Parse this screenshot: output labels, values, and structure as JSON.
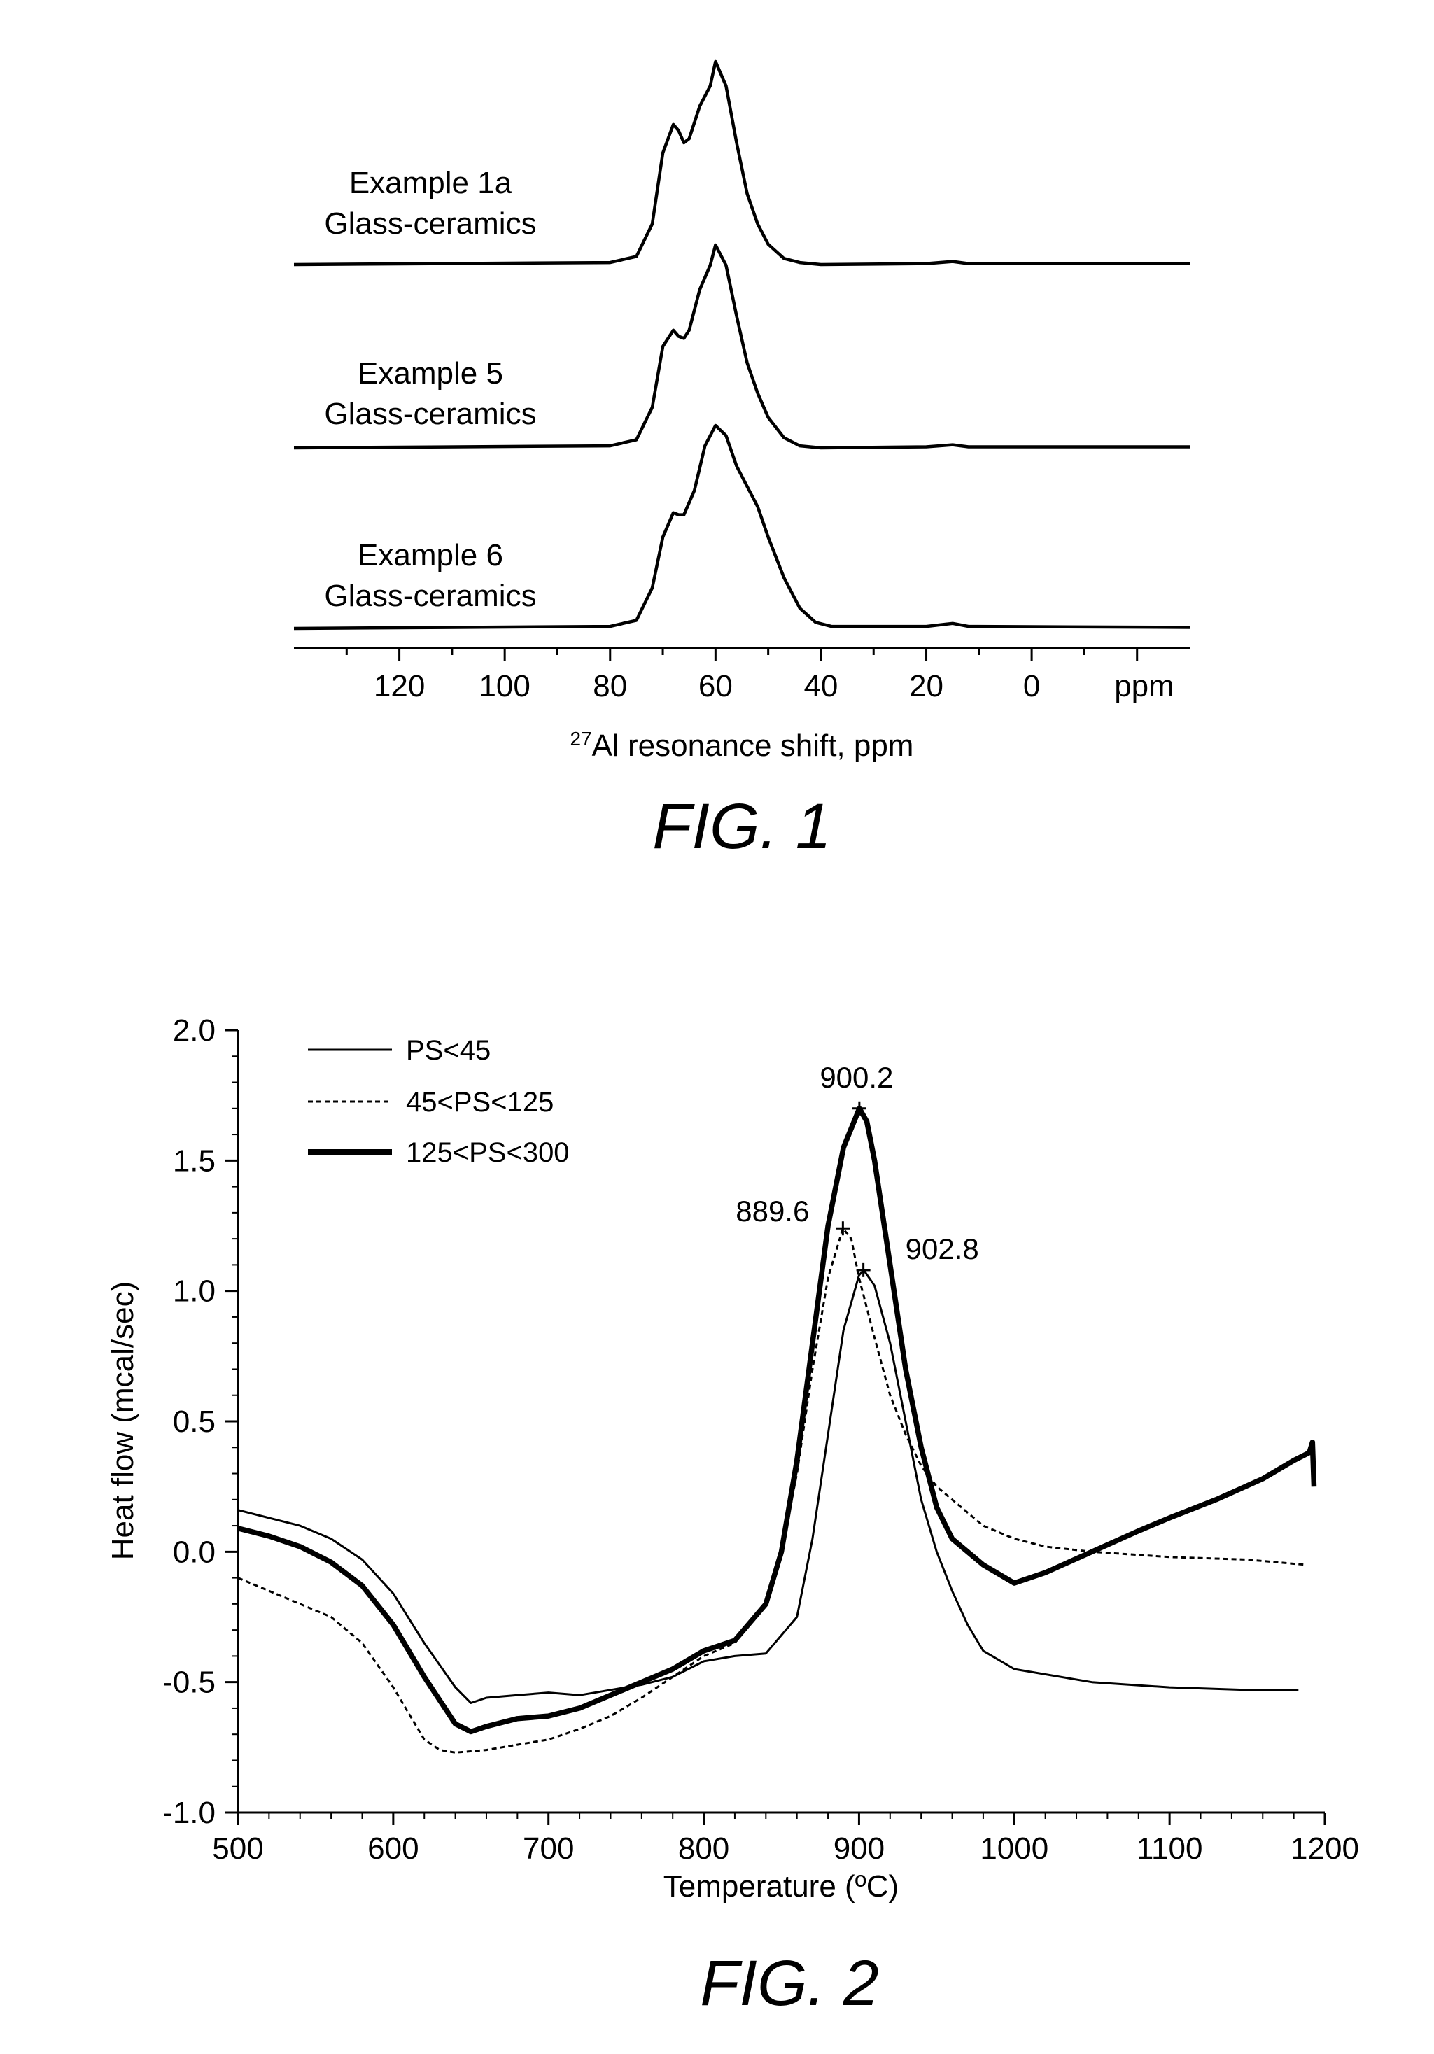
{
  "figure1": {
    "caption": "FIG. 1",
    "chart_data": {
      "type": "line",
      "xlabel_sup": "27",
      "xlabel": "Al resonance shift, ppm",
      "x_ticks": [
        120,
        100,
        80,
        60,
        40,
        20,
        0
      ],
      "x_unit_label": "ppm",
      "xlim": [
        140,
        -30
      ],
      "x_reversed": true,
      "series": [
        {
          "name_line1": "Example 1a",
          "name_line2": "Glass-ceramics",
          "x": [
            140,
            80,
            75,
            72,
            70,
            68,
            67,
            66,
            65,
            63,
            61,
            60,
            58,
            56,
            54,
            52,
            50,
            47,
            44,
            40,
            20,
            15,
            12,
            -30
          ],
          "y": [
            0,
            0.01,
            0.04,
            0.2,
            0.55,
            0.69,
            0.66,
            0.6,
            0.62,
            0.78,
            0.88,
            1.0,
            0.88,
            0.6,
            0.35,
            0.2,
            0.1,
            0.03,
            0.01,
            0,
            0.005,
            0.015,
            0.005,
            0.005
          ]
        },
        {
          "name_line1": "Example 5",
          "name_line2": "Glass-ceramics",
          "x": [
            140,
            80,
            75,
            72,
            70,
            68,
            67,
            66,
            65,
            63,
            61,
            60,
            58,
            56,
            54,
            52,
            50,
            47,
            44,
            40,
            20,
            15,
            12,
            -30
          ],
          "y": [
            0,
            0.01,
            0.04,
            0.2,
            0.5,
            0.58,
            0.55,
            0.54,
            0.58,
            0.78,
            0.9,
            1.0,
            0.9,
            0.65,
            0.42,
            0.27,
            0.15,
            0.05,
            0.01,
            0,
            0.005,
            0.015,
            0.005,
            0.005
          ]
        },
        {
          "name_line1": "Example 6",
          "name_line2": "Glass-ceramics",
          "x": [
            140,
            80,
            75,
            72,
            70,
            68,
            67,
            66,
            64,
            62,
            60,
            58,
            56,
            54,
            52,
            50,
            47,
            44,
            41,
            38,
            20,
            15,
            12,
            -30
          ],
          "y": [
            0,
            0.01,
            0.04,
            0.2,
            0.45,
            0.57,
            0.56,
            0.56,
            0.68,
            0.9,
            1.0,
            0.95,
            0.8,
            0.7,
            0.6,
            0.45,
            0.25,
            0.1,
            0.03,
            0.01,
            0.01,
            0.025,
            0.01,
            0.005
          ]
        }
      ]
    }
  },
  "figure2": {
    "caption": "FIG. 2",
    "chart_data": {
      "type": "line",
      "xlabel": "Temperature (ºC)",
      "ylabel": "Heat flow (mcal/sec)",
      "xlim": [
        500,
        1200
      ],
      "ylim": [
        -1.0,
        2.0
      ],
      "x_ticks": [
        "500",
        "600",
        "700",
        "800",
        "900",
        "1000",
        "1100",
        "1200"
      ],
      "y_ticks": [
        "2.0",
        "1.5",
        "1.0",
        "0.5",
        "0.0",
        "-0.5",
        "-1.0"
      ],
      "legend_placement": "top-left",
      "series": [
        {
          "name": "PS<45",
          "style": "solid-thin",
          "x": [
            500,
            520,
            540,
            560,
            580,
            600,
            620,
            640,
            650,
            660,
            680,
            700,
            720,
            740,
            760,
            780,
            800,
            820,
            840,
            860,
            870,
            880,
            890,
            900,
            903,
            910,
            920,
            930,
            940,
            950,
            960,
            970,
            980,
            1000,
            1050,
            1100,
            1150,
            1183
          ],
          "y": [
            0.16,
            0.13,
            0.1,
            0.05,
            -0.03,
            -0.16,
            -0.35,
            -0.52,
            -0.58,
            -0.56,
            -0.55,
            -0.54,
            -0.55,
            -0.53,
            -0.51,
            -0.48,
            -0.42,
            -0.4,
            -0.39,
            -0.25,
            0.05,
            0.45,
            0.85,
            1.06,
            1.08,
            1.02,
            0.8,
            0.5,
            0.2,
            0.0,
            -0.15,
            -0.28,
            -0.38,
            -0.45,
            -0.5,
            -0.52,
            -0.53,
            -0.53
          ]
        },
        {
          "name": "45<PS<125",
          "style": "dashed",
          "x": [
            500,
            520,
            540,
            560,
            580,
            600,
            620,
            630,
            640,
            660,
            680,
            700,
            720,
            740,
            760,
            780,
            800,
            820,
            840,
            850,
            860,
            870,
            880,
            889.6,
            895,
            900,
            910,
            920,
            930,
            940,
            950,
            960,
            980,
            1000,
            1020,
            1050,
            1100,
            1150,
            1188
          ],
          "y": [
            -0.1,
            -0.15,
            -0.2,
            -0.25,
            -0.35,
            -0.52,
            -0.72,
            -0.76,
            -0.77,
            -0.76,
            -0.74,
            -0.72,
            -0.68,
            -0.63,
            -0.56,
            -0.48,
            -0.4,
            -0.35,
            -0.2,
            0.0,
            0.3,
            0.7,
            1.05,
            1.24,
            1.2,
            1.05,
            0.82,
            0.6,
            0.45,
            0.33,
            0.25,
            0.2,
            0.1,
            0.05,
            0.02,
            0.0,
            -0.02,
            -0.03,
            -0.05
          ]
        },
        {
          "name": "125<PS<300",
          "style": "solid-thick",
          "x": [
            500,
            520,
            540,
            560,
            580,
            600,
            620,
            640,
            650,
            660,
            680,
            700,
            720,
            740,
            760,
            780,
            800,
            820,
            840,
            850,
            860,
            870,
            880,
            890,
            900.2,
            905,
            910,
            920,
            930,
            940,
            950,
            960,
            980,
            1000,
            1020,
            1050,
            1080,
            1100,
            1130,
            1160,
            1180,
            1190,
            1192,
            1193
          ],
          "y": [
            0.09,
            0.06,
            0.02,
            -0.04,
            -0.13,
            -0.28,
            -0.48,
            -0.66,
            -0.69,
            -0.67,
            -0.64,
            -0.63,
            -0.6,
            -0.55,
            -0.5,
            -0.45,
            -0.38,
            -0.34,
            -0.2,
            0.0,
            0.35,
            0.8,
            1.25,
            1.55,
            1.7,
            1.65,
            1.5,
            1.1,
            0.7,
            0.4,
            0.17,
            0.05,
            -0.05,
            -0.12,
            -0.08,
            0.0,
            0.08,
            0.13,
            0.2,
            0.28,
            0.35,
            0.38,
            0.42,
            0.25
          ]
        }
      ],
      "annotations": [
        {
          "text": "900.2",
          "x": 900.2,
          "y": 1.7
        },
        {
          "text": "889.6",
          "x": 889.6,
          "y": 1.24
        },
        {
          "text": "902.8",
          "x": 902.8,
          "y": 1.08
        }
      ]
    }
  }
}
